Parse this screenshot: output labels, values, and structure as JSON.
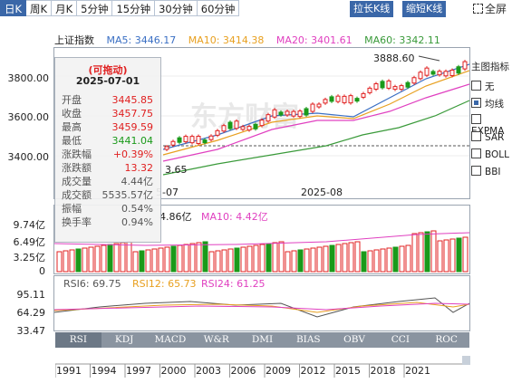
{
  "tabs": [
    {
      "label": "日K",
      "active": true
    },
    {
      "label": "周K",
      "active": false
    },
    {
      "label": "月K",
      "active": false
    },
    {
      "label": "5分钟",
      "active": false
    },
    {
      "label": "15分钟",
      "active": false
    },
    {
      "label": "30分钟",
      "active": false
    },
    {
      "label": "60分钟",
      "active": false
    }
  ],
  "toolbar": {
    "lengthen": "拉长K线",
    "shorten": "缩短K线",
    "fullscreen": "全屏"
  },
  "legend": {
    "title": "上证指数",
    "ma5": "MA5: 3446.17",
    "ma10": "MA10: 3414.38",
    "ma20": "MA20: 3401.61",
    "ma60": "MA60: 3342.11"
  },
  "colors": {
    "ma5": "#3a6fc4",
    "ma10": "#e8a020",
    "ma20": "#e040c0",
    "ma60": "#3a9a3a",
    "up": "#e02020",
    "down": "#1a9a1a",
    "accent": "#3a67a8"
  },
  "main_axis": {
    "labels": [
      "3800.00",
      "3600.00",
      "3400.00"
    ]
  },
  "price_annotations": {
    "high": "3888.60",
    "low": "3.65"
  },
  "date_labels": {
    "left": "5-07",
    "mid": "2025-08"
  },
  "side_panel": {
    "title": "主图指标",
    "options": [
      {
        "label": "无",
        "type": "radio",
        "checked": false
      },
      {
        "label": "均线",
        "type": "radio",
        "checked": true
      },
      {
        "label": "EXPMA",
        "type": "radio",
        "checked": false
      },
      {
        "label": "SAR",
        "type": "checkbox",
        "checked": false
      },
      {
        "label": "BOLL",
        "type": "checkbox",
        "checked": false
      },
      {
        "label": "BBI",
        "type": "checkbox",
        "checked": false
      }
    ]
  },
  "tooltip": {
    "title": "(可拖动)",
    "date": "2025-07-01",
    "rows": [
      {
        "k": "开盘",
        "v": "3445.85",
        "color": "#e02020"
      },
      {
        "k": "收盘",
        "v": "3457.75",
        "color": "#e02020"
      },
      {
        "k": "最高",
        "v": "3459.59",
        "color": "#e02020"
      },
      {
        "k": "最低",
        "v": "3441.04",
        "color": "#1a9a1a"
      },
      {
        "k": "涨跌幅",
        "v": "+0.39%",
        "color": "#e02020"
      },
      {
        "k": "涨跌额",
        "v": "13.32",
        "color": "#e02020"
      },
      {
        "k": "成交量",
        "v": "4.44亿",
        "color": "#555"
      },
      {
        "k": "成交额",
        "v": "5535.57亿",
        "color": "#555"
      },
      {
        "k": "振幅",
        "v": "0.54%",
        "color": "#555"
      },
      {
        "k": "换手率",
        "v": "0.94%",
        "color": "#555"
      }
    ]
  },
  "volume": {
    "axis": [
      "9.74亿",
      "6.49亿",
      "3.25亿",
      "0"
    ],
    "legend_vol": "4.86亿",
    "legend_ma10": "MA10: 4.42亿"
  },
  "rsi": {
    "axis": [
      "95.11",
      "64.29",
      "33.47"
    ],
    "rsi6": "RSI6: 69.75",
    "rsi12": "RSI12: 65.73",
    "rsi24": "RSI24: 61.25"
  },
  "indicators": [
    "RSI",
    "KDJ",
    "MACD",
    "W&R",
    "DMI",
    "BIAS",
    "OBV",
    "CCI",
    "ROC"
  ],
  "timeline": [
    "1991",
    "1994",
    "1997",
    "2000",
    "2003",
    "2006",
    "2009",
    "2012",
    "2015",
    "2018",
    "2021"
  ]
}
